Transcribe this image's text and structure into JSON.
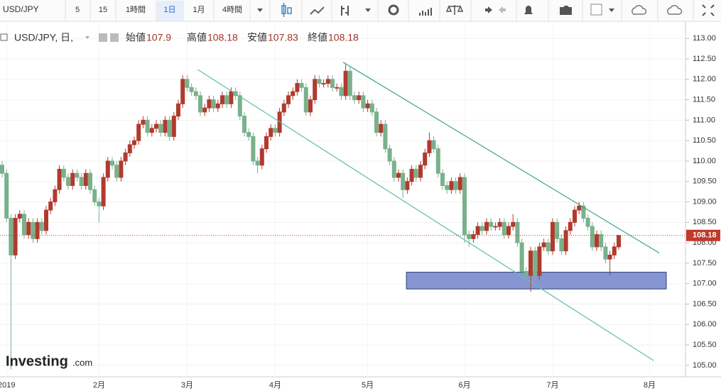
{
  "toolbar": {
    "symbol": "USD/JPY",
    "intervals": [
      "5",
      "15",
      "1時間",
      "1日",
      "1月",
      "4時間"
    ]
  },
  "logo": {
    "name": "Investing",
    "suffix": ".com"
  },
  "chart_data": {
    "type": "candlestick",
    "header": {
      "symbol": "USD/JPY, 日,",
      "open_label": "始値",
      "high_label": "高値",
      "low_label": "安値",
      "close_label": "終値"
    },
    "categories": [
      null,
      "2019",
      null,
      null,
      null,
      null,
      null,
      null,
      null,
      null,
      null,
      null,
      null,
      null,
      null,
      null,
      null,
      null,
      null,
      null,
      null,
      null,
      "2月",
      null,
      null,
      null,
      null,
      null,
      null,
      null,
      null,
      null,
      null,
      null,
      null,
      null,
      null,
      null,
      null,
      null,
      null,
      null,
      "3月",
      null,
      null,
      null,
      null,
      null,
      null,
      null,
      null,
      null,
      null,
      null,
      null,
      null,
      null,
      null,
      null,
      null,
      null,
      null,
      "4月",
      null,
      null,
      null,
      null,
      null,
      null,
      null,
      null,
      null,
      null,
      null,
      null,
      null,
      null,
      null,
      null,
      null,
      null,
      null,
      null,
      "5月",
      null,
      null,
      null,
      null,
      null,
      null,
      null,
      null,
      null,
      null,
      null,
      null,
      null,
      null,
      null,
      null,
      null,
      null,
      null,
      null,
      null,
      "6月",
      null,
      null,
      null,
      null,
      null,
      null,
      null,
      null,
      null,
      null,
      null,
      null,
      null,
      null,
      null,
      null,
      null,
      null,
      null,
      "7月",
      null,
      null,
      null,
      null,
      null,
      null,
      null,
      null,
      null,
      null,
      null,
      null,
      null,
      null,
      null,
      null,
      null,
      null,
      null,
      null,
      null,
      "8月"
    ],
    "open": [
      109.9,
      109.7,
      108.6,
      107.7,
      108.6,
      108.7,
      108.2,
      108.5,
      108.1,
      108.5,
      108.3,
      108.8,
      109.0,
      109.3,
      109.8,
      109.6,
      109.4,
      109.7,
      109.6,
      109.4,
      109.7,
      109.3,
      109.0,
      108.9,
      109.6,
      110.0,
      109.9,
      109.6,
      110.0,
      110.2,
      110.4,
      110.5,
      110.9,
      111.0,
      110.7,
      110.8,
      110.9,
      110.7,
      111.0,
      110.6,
      111.1,
      111.4,
      112.0,
      111.8,
      111.7,
      111.6,
      111.2,
      111.3,
      111.5,
      111.3,
      111.4,
      111.6,
      111.4,
      111.7,
      111.6,
      111.1,
      110.7,
      110.6,
      110.0,
      109.9,
      110.3,
      110.6,
      110.8,
      110.7,
      111.2,
      111.4,
      111.6,
      111.7,
      111.9,
      111.8,
      111.2,
      111.5,
      112.0,
      111.9,
      111.9,
      112.0,
      111.8,
      111.8,
      111.6,
      112.2,
      111.6,
      111.5,
      111.6,
      111.3,
      111.4,
      111.2,
      110.7,
      110.9,
      110.3,
      110.0,
      109.6,
      109.7,
      109.3,
      109.5,
      109.8,
      109.6,
      109.9,
      110.2,
      110.5,
      110.3,
      109.7,
      109.4,
      109.3,
      109.5,
      109.3,
      109.6,
      108.2,
      108.1,
      108.2,
      108.4,
      108.3,
      108.5,
      108.4,
      108.4,
      108.5,
      108.2,
      108.4,
      108.5,
      108.0,
      107.3,
      107.2,
      107.8,
      107.2,
      107.9,
      108.0,
      107.8,
      108.5,
      108.1,
      107.8,
      108.3,
      108.5,
      108.8,
      108.9,
      108.6,
      108.4,
      107.9,
      108.2,
      107.9,
      107.6,
      107.7,
      107.9,
      null,
      null,
      null,
      null,
      null,
      null,
      null
    ],
    "high": [
      110.0,
      109.8,
      108.7,
      108.7,
      108.8,
      108.8,
      108.6,
      108.6,
      108.6,
      108.6,
      108.9,
      109.1,
      109.4,
      109.9,
      109.9,
      109.7,
      109.8,
      109.8,
      109.7,
      109.8,
      109.8,
      109.4,
      109.1,
      109.7,
      110.1,
      110.1,
      110.0,
      110.1,
      110.3,
      110.5,
      110.6,
      111.0,
      111.1,
      111.1,
      110.9,
      111.0,
      111.0,
      111.1,
      111.1,
      111.2,
      111.5,
      112.1,
      112.1,
      111.9,
      111.8,
      111.7,
      111.4,
      111.6,
      111.6,
      111.5,
      111.7,
      111.7,
      111.8,
      111.8,
      111.7,
      111.2,
      110.8,
      110.7,
      110.1,
      110.4,
      110.7,
      110.9,
      110.9,
      111.3,
      111.5,
      111.7,
      111.8,
      112.0,
      112.0,
      111.9,
      111.6,
      112.1,
      112.1,
      112.0,
      112.1,
      112.1,
      111.9,
      111.9,
      112.4,
      112.3,
      111.7,
      111.7,
      111.7,
      111.5,
      111.5,
      111.3,
      111.0,
      111.0,
      110.4,
      110.1,
      109.8,
      109.8,
      109.6,
      109.9,
      109.9,
      110.0,
      110.3,
      110.7,
      110.6,
      110.4,
      109.8,
      109.5,
      109.6,
      109.6,
      109.7,
      109.7,
      108.3,
      108.3,
      108.5,
      108.5,
      108.6,
      108.6,
      108.5,
      108.6,
      108.6,
      108.5,
      108.7,
      108.6,
      108.1,
      107.4,
      107.9,
      107.9,
      108.0,
      108.1,
      108.1,
      108.6,
      108.6,
      108.2,
      108.4,
      108.6,
      108.9,
      109.0,
      109.0,
      108.7,
      108.5,
      108.3,
      108.3,
      108.0,
      107.8,
      108.0,
      108.18,
      null,
      null,
      null,
      null,
      null,
      null,
      null
    ],
    "low": [
      109.6,
      108.5,
      104.9,
      107.6,
      108.5,
      108.1,
      108.1,
      108.0,
      108.0,
      108.2,
      108.2,
      108.7,
      108.9,
      109.2,
      109.5,
      109.3,
      109.3,
      109.5,
      109.3,
      109.3,
      109.2,
      108.9,
      108.5,
      108.8,
      109.5,
      109.8,
      109.5,
      109.5,
      109.9,
      110.1,
      110.3,
      110.4,
      110.8,
      110.6,
      110.6,
      110.7,
      110.6,
      110.6,
      110.5,
      110.5,
      111.0,
      111.3,
      111.7,
      111.6,
      111.5,
      111.1,
      111.1,
      111.2,
      111.2,
      111.2,
      111.3,
      111.3,
      111.3,
      111.5,
      111.0,
      110.6,
      110.5,
      109.9,
      109.7,
      109.8,
      110.2,
      110.5,
      110.6,
      110.6,
      111.1,
      111.3,
      111.5,
      111.6,
      111.7,
      111.1,
      111.1,
      111.4,
      111.8,
      111.8,
      111.8,
      111.7,
      111.7,
      111.5,
      111.5,
      111.5,
      111.4,
      111.4,
      111.2,
      111.2,
      111.1,
      110.6,
      110.6,
      110.2,
      109.9,
      109.5,
      109.5,
      109.1,
      109.2,
      109.4,
      109.5,
      109.5,
      109.8,
      110.1,
      110.2,
      109.6,
      109.3,
      109.2,
      109.2,
      109.2,
      109.2,
      108.0,
      107.9,
      108.0,
      108.1,
      108.2,
      108.2,
      108.3,
      108.3,
      108.3,
      108.1,
      108.1,
      108.3,
      107.9,
      107.2,
      107.1,
      106.8,
      107.1,
      107.1,
      107.8,
      107.7,
      107.7,
      108.0,
      107.7,
      107.7,
      108.2,
      108.4,
      108.7,
      108.5,
      108.3,
      107.8,
      107.8,
      107.8,
      107.5,
      107.2,
      107.6,
      107.83,
      null,
      null,
      null,
      null,
      null,
      null,
      null
    ],
    "close": [
      109.7,
      108.6,
      107.7,
      108.6,
      108.7,
      108.2,
      108.5,
      108.1,
      108.5,
      108.3,
      108.8,
      109.0,
      109.3,
      109.8,
      109.6,
      109.4,
      109.7,
      109.6,
      109.4,
      109.7,
      109.3,
      109.0,
      108.9,
      109.6,
      110.0,
      109.9,
      109.6,
      110.0,
      110.2,
      110.4,
      110.5,
      110.9,
      111.0,
      110.7,
      110.8,
      110.9,
      110.7,
      111.0,
      110.6,
      111.1,
      111.4,
      112.0,
      111.8,
      111.7,
      111.6,
      111.2,
      111.3,
      111.5,
      111.3,
      111.4,
      111.6,
      111.4,
      111.7,
      111.6,
      111.1,
      110.7,
      110.6,
      110.0,
      109.9,
      110.3,
      110.6,
      110.8,
      110.7,
      111.2,
      111.4,
      111.6,
      111.7,
      111.9,
      111.8,
      111.2,
      111.5,
      112.0,
      111.9,
      111.9,
      112.0,
      111.8,
      111.8,
      111.6,
      112.2,
      111.6,
      111.5,
      111.6,
      111.3,
      111.4,
      111.2,
      110.7,
      110.9,
      110.3,
      110.0,
      109.6,
      109.7,
      109.3,
      109.5,
      109.8,
      109.6,
      109.9,
      110.2,
      110.5,
      110.3,
      109.7,
      109.4,
      109.3,
      109.5,
      109.3,
      109.6,
      108.2,
      108.1,
      108.2,
      108.4,
      108.3,
      108.5,
      108.4,
      108.4,
      108.5,
      108.2,
      108.4,
      108.5,
      108.0,
      107.3,
      107.2,
      107.8,
      107.2,
      107.9,
      108.0,
      107.8,
      108.5,
      108.1,
      107.8,
      108.3,
      108.5,
      108.8,
      108.9,
      108.6,
      108.4,
      107.9,
      108.2,
      107.9,
      107.6,
      107.7,
      107.9,
      108.18,
      null,
      null,
      null,
      null,
      null,
      null,
      null
    ],
    "up_color": "#b03a2e",
    "down_color": "#79b18c",
    "price_line_color": "#c0392b",
    "ylim": [
      104.72,
      113.42
    ],
    "yticks": [
      {
        "value": 105,
        "label": "105.00"
      },
      {
        "value": 105.5,
        "label": "105.50"
      },
      {
        "value": 106,
        "label": "106.00"
      },
      {
        "value": 106.5,
        "label": "106.50"
      },
      {
        "value": 107,
        "label": "107.00"
      },
      {
        "value": 107.5,
        "label": "107.50"
      },
      {
        "value": 108,
        "label": "108.00"
      },
      {
        "value": 108.5,
        "label": "108.50"
      },
      {
        "value": 109,
        "label": "109.00"
      },
      {
        "value": 109.5,
        "label": "109.50"
      },
      {
        "value": 110,
        "label": "110.00"
      },
      {
        "value": 110.5,
        "label": "110.50"
      },
      {
        "value": 111,
        "label": "111.00"
      },
      {
        "value": 111.5,
        "label": "111.50"
      },
      {
        "value": 112,
        "label": "112.00"
      },
      {
        "value": 112.5,
        "label": "112.50"
      },
      {
        "value": 113,
        "label": "113.00"
      }
    ],
    "grid": true,
    "trendlines": [
      {
        "x": [
          77.4,
          149.2
        ],
        "y": [
          112.42,
          107.75
        ],
        "color": "#3aa58a"
      },
      {
        "x": [
          44.4,
          147.9
        ],
        "y": [
          112.24,
          105.12
        ],
        "color": "#5cc0a8"
      }
    ],
    "zone": {
      "x": [
        91.8,
        150.8
      ],
      "y": [
        107.28,
        106.87
      ],
      "color": "#8796d2",
      "border": "#2b3a7a"
    }
  }
}
